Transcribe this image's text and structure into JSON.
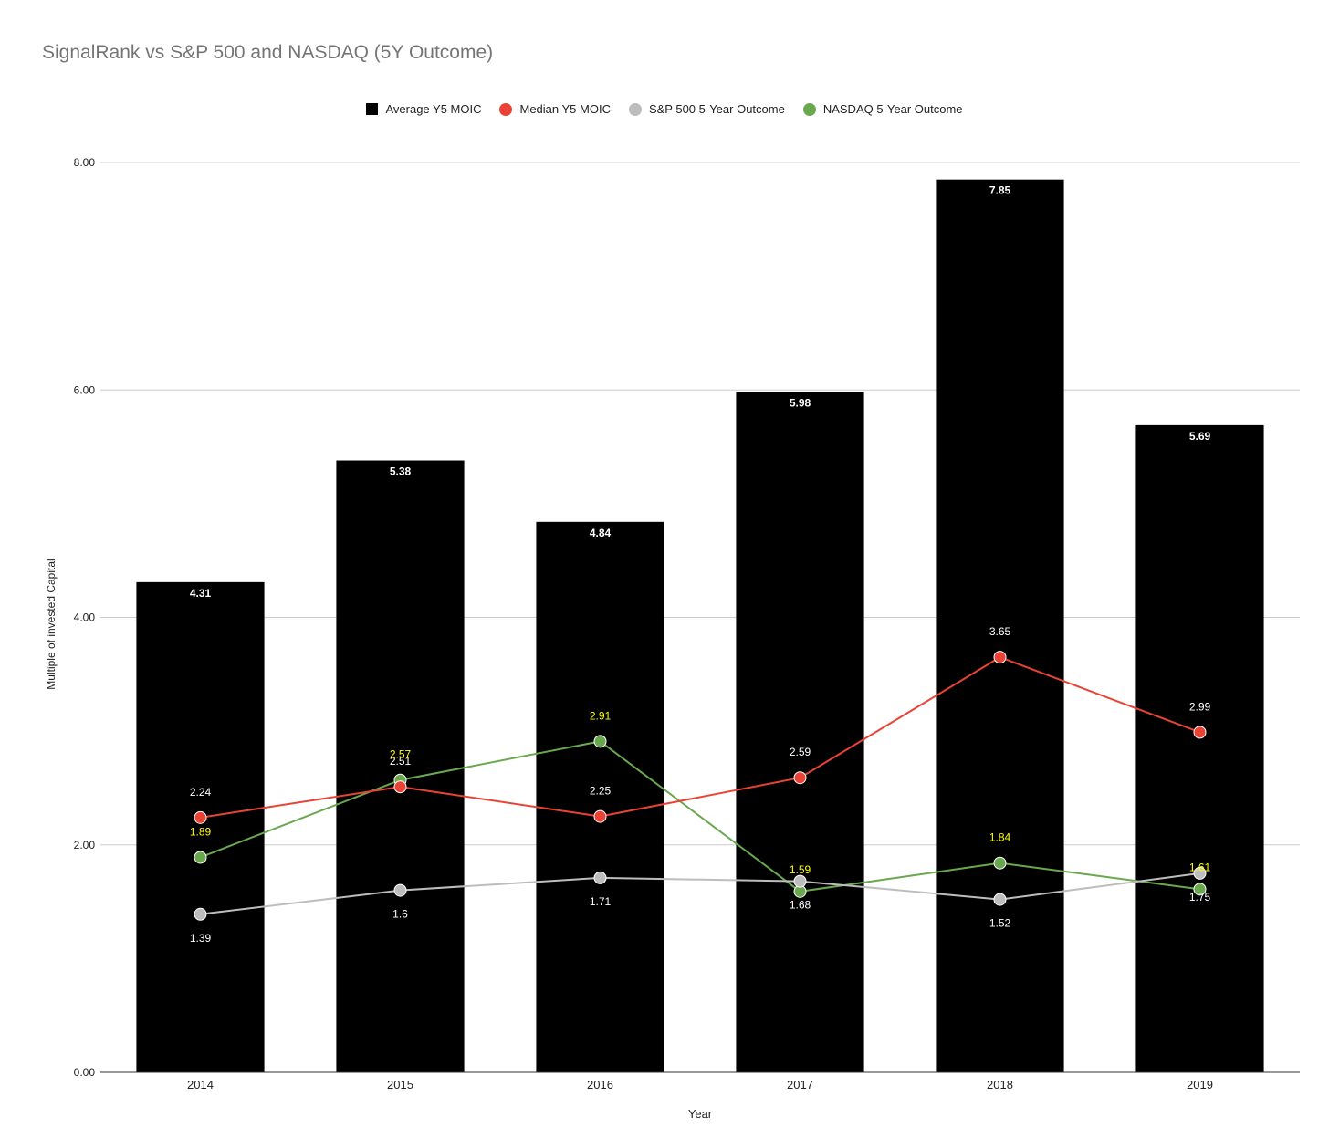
{
  "chart_data": {
    "type": "bar",
    "title": "SignalRank vs S&P 500  and NASDAQ (5Y Outcome)",
    "xlabel": "Year",
    "ylabel": "Multiple of invested Capital",
    "ylim": [
      0,
      8
    ],
    "yticks": [
      "0.00",
      "2.00",
      "4.00",
      "6.00",
      "8.00"
    ],
    "categories": [
      "2014",
      "2015",
      "2016",
      "2017",
      "2018",
      "2019"
    ],
    "series": [
      {
        "name": "Average Y5 MOIC",
        "type": "bar",
        "color": "#000000",
        "label_color": "#ffffff",
        "values": [
          4.31,
          5.38,
          4.84,
          5.98,
          7.85,
          5.69
        ],
        "labels": [
          "4.31",
          "5.38",
          "4.84",
          "5.98",
          "7.85",
          "5.69"
        ]
      },
      {
        "name": "Median Y5 MOIC",
        "type": "line",
        "color": "#ea4335",
        "label_color": "#ffffff",
        "values": [
          2.24,
          2.51,
          2.25,
          2.59,
          3.65,
          2.99
        ],
        "labels": [
          "2.24",
          "2.51",
          "2.25",
          "2.59",
          "3.65",
          "2.99"
        ]
      },
      {
        "name": "S&P 500 5-Year Outcome",
        "type": "line",
        "color": "#bdbdbd",
        "label_color": "#ffffff",
        "values": [
          1.39,
          1.6,
          1.71,
          1.68,
          1.52,
          1.75
        ],
        "labels": [
          "1.39",
          "1.6",
          "1.71",
          "1.68",
          "1.52",
          "1.75"
        ]
      },
      {
        "name": "NASDAQ 5-Year Outcome",
        "type": "line",
        "color": "#6aa84f",
        "label_color": "#ffff00",
        "values": [
          1.89,
          2.57,
          2.91,
          1.59,
          1.84,
          1.61
        ],
        "labels": [
          "1.89",
          "2.57",
          "2.91",
          "1.59",
          "1.84",
          "1.61"
        ]
      }
    ],
    "legend": "top-center",
    "grid": true
  }
}
